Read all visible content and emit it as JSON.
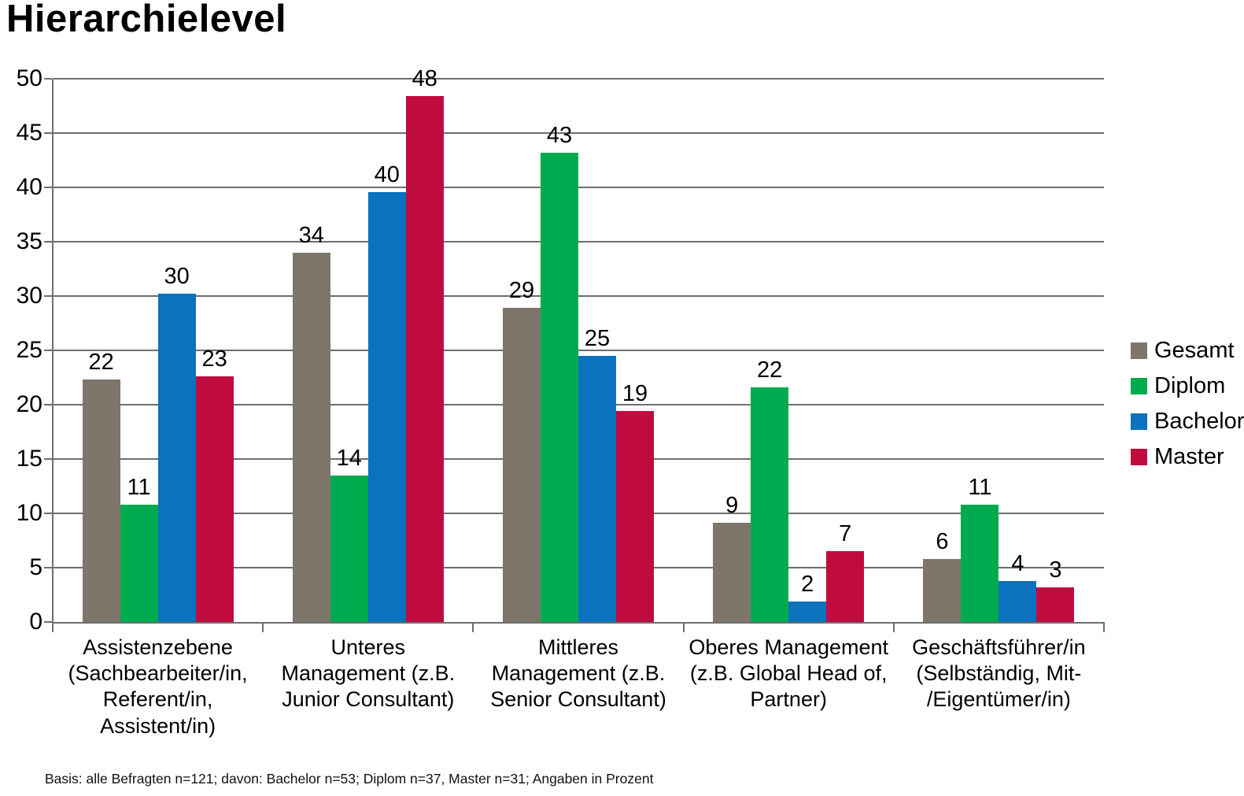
{
  "title": "Hierarchielevel",
  "footer": "Basis: alle Befragten n=121; davon: Bachelor n=53; Diplom n=37, Master n=31; Angaben in Prozent",
  "colors": {
    "grid": "#6e6e6e",
    "axis": "#6e6e6e",
    "gesamt": "#7e766b",
    "diplom": "#00ab50",
    "bachelor": "#0b72be",
    "master": "#c00b3e"
  },
  "chart_data": {
    "type": "bar",
    "title": "Hierarchielevel",
    "categories": [
      "Assistenzebene\n(Sachbearbeiter/in,\nReferent/in,\nAssistent/in)",
      "Unteres\nManagement (z.B.\nJunior Consultant)",
      "Mittleres\nManagement (z.B.\nSenior Consultant)",
      "Oberes Management\n(z.B. Global Head of,\nPartner)",
      "Geschäftsführer/in\n(Selbständig, Mit-\n/Eigentümer/in)"
    ],
    "series": [
      {
        "name": "Gesamt",
        "color": "#7e766b",
        "values": [
          22,
          34,
          29,
          9,
          6
        ],
        "precise_values": [
          22.3,
          34.0,
          28.9,
          9.1,
          5.8
        ]
      },
      {
        "name": "Diplom",
        "color": "#00ab50",
        "values": [
          11,
          14,
          43,
          22,
          11
        ],
        "precise_values": [
          10.8,
          13.5,
          43.2,
          21.6,
          10.8
        ]
      },
      {
        "name": "Bachelor",
        "color": "#0b72be",
        "values": [
          30,
          40,
          25,
          2,
          4
        ],
        "precise_values": [
          30.2,
          39.6,
          24.5,
          1.9,
          3.8
        ]
      },
      {
        "name": "Master",
        "color": "#c00b3e",
        "values": [
          23,
          48,
          19,
          7,
          3
        ],
        "precise_values": [
          22.6,
          48.4,
          19.4,
          6.5,
          3.2
        ]
      }
    ],
    "ylabel": "",
    "xlabel": "",
    "ylim": [
      0,
      50
    ],
    "ytick_step": 5,
    "yticks": [
      0,
      5,
      10,
      15,
      20,
      25,
      30,
      35,
      40,
      45,
      50
    ],
    "grid": "horizontal",
    "legend_position": "right",
    "units": "Prozent"
  }
}
